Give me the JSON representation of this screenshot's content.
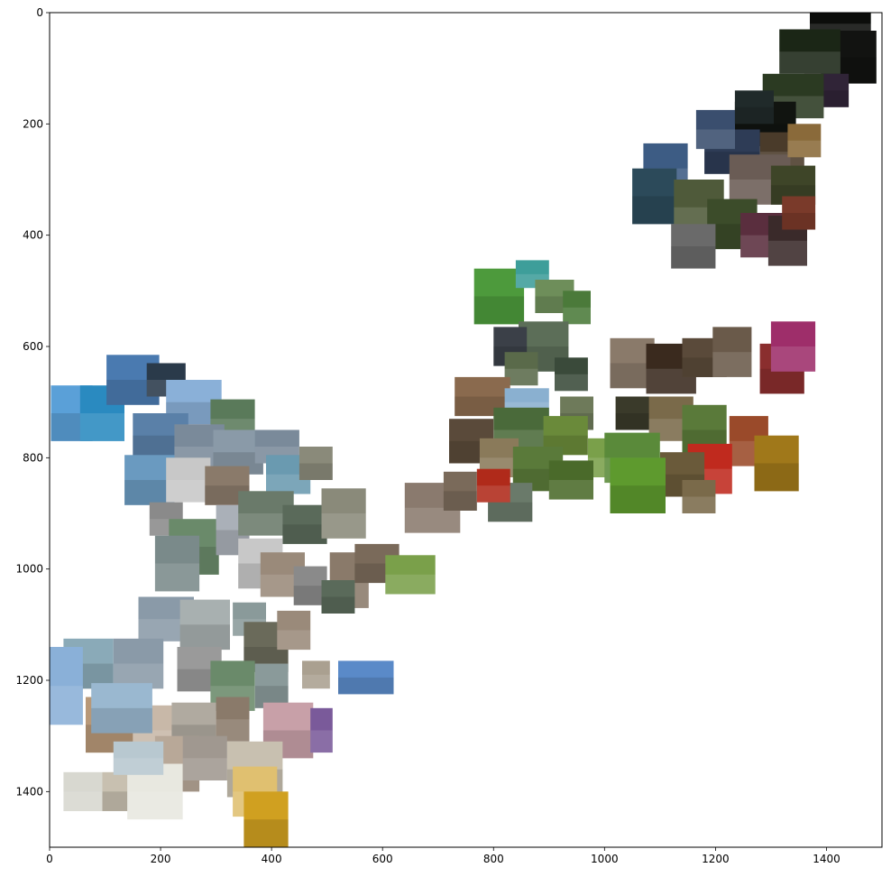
{
  "chart_data": {
    "type": "scatter",
    "title": "",
    "xlabel": "",
    "ylabel": "",
    "xlim": [
      0,
      1500
    ],
    "ylim": [
      1500,
      0
    ],
    "y_inverted": true,
    "grid": false,
    "legend": "none",
    "x_ticks": [
      0,
      200,
      400,
      600,
      800,
      1000,
      1200,
      1400
    ],
    "y_ticks": [
      0,
      200,
      400,
      600,
      800,
      1000,
      1200,
      1400
    ],
    "description_marks": "image thumbnails placed at embedding coordinates",
    "points": [
      {
        "x": 1425,
        "y": 20,
        "w": 110,
        "h": 60,
        "color": "#0c0d0b"
      },
      {
        "x": 1440,
        "y": 80,
        "w": 100,
        "h": 95,
        "color": "#121311"
      },
      {
        "x": 1370,
        "y": 70,
        "w": 110,
        "h": 80,
        "color": "#1b2616"
      },
      {
        "x": 1400,
        "y": 140,
        "w": 80,
        "h": 60,
        "color": "#302437"
      },
      {
        "x": 1340,
        "y": 150,
        "w": 110,
        "h": 80,
        "color": "#2b3a22"
      },
      {
        "x": 1290,
        "y": 200,
        "w": 110,
        "h": 80,
        "color": "#111410"
      },
      {
        "x": 1320,
        "y": 250,
        "w": 80,
        "h": 70,
        "color": "#4a3b2a"
      },
      {
        "x": 1230,
        "y": 250,
        "w": 100,
        "h": 80,
        "color": "#2e3c56"
      },
      {
        "x": 1280,
        "y": 300,
        "w": 110,
        "h": 90,
        "color": "#6a5c55"
      },
      {
        "x": 1340,
        "y": 310,
        "w": 80,
        "h": 70,
        "color": "#3e4528"
      },
      {
        "x": 1110,
        "y": 280,
        "w": 80,
        "h": 90,
        "color": "#3d5c84"
      },
      {
        "x": 1090,
        "y": 330,
        "w": 80,
        "h": 100,
        "color": "#2c4a5a"
      },
      {
        "x": 1170,
        "y": 350,
        "w": 90,
        "h": 100,
        "color": "#4f5a3a"
      },
      {
        "x": 1230,
        "y": 380,
        "w": 90,
        "h": 90,
        "color": "#3c4c2a"
      },
      {
        "x": 1290,
        "y": 400,
        "w": 90,
        "h": 80,
        "color": "#5a2e3e"
      },
      {
        "x": 1160,
        "y": 420,
        "w": 80,
        "h": 80,
        "color": "#6a6a6a"
      },
      {
        "x": 1330,
        "y": 410,
        "w": 70,
        "h": 90,
        "color": "#3a2a2a"
      },
      {
        "x": 1350,
        "y": 360,
        "w": 60,
        "h": 60,
        "color": "#7a3a2a"
      },
      {
        "x": 1200,
        "y": 210,
        "w": 70,
        "h": 70,
        "color": "#3a4e6e"
      },
      {
        "x": 1270,
        "y": 170,
        "w": 70,
        "h": 60,
        "color": "#202a2a"
      },
      {
        "x": 1360,
        "y": 230,
        "w": 60,
        "h": 60,
        "color": "#8a6a3a"
      },
      {
        "x": 810,
        "y": 510,
        "w": 90,
        "h": 100,
        "color": "#4d9a3c"
      },
      {
        "x": 870,
        "y": 470,
        "w": 60,
        "h": 50,
        "color": "#3e9e9a"
      },
      {
        "x": 910,
        "y": 510,
        "w": 70,
        "h": 60,
        "color": "#6e8e5a"
      },
      {
        "x": 950,
        "y": 530,
        "w": 50,
        "h": 60,
        "color": "#4b7a3a"
      },
      {
        "x": 890,
        "y": 600,
        "w": 90,
        "h": 90,
        "color": "#5c6e58"
      },
      {
        "x": 940,
        "y": 650,
        "w": 60,
        "h": 60,
        "color": "#3a4a3a"
      },
      {
        "x": 830,
        "y": 600,
        "w": 60,
        "h": 70,
        "color": "#3b4048"
      },
      {
        "x": 850,
        "y": 640,
        "w": 60,
        "h": 60,
        "color": "#5a6a4a"
      },
      {
        "x": 780,
        "y": 690,
        "w": 100,
        "h": 70,
        "color": "#8a6a4e"
      },
      {
        "x": 860,
        "y": 700,
        "w": 80,
        "h": 50,
        "color": "#8ab0d0"
      },
      {
        "x": 950,
        "y": 720,
        "w": 60,
        "h": 60,
        "color": "#6e7a5a"
      },
      {
        "x": 850,
        "y": 750,
        "w": 100,
        "h": 80,
        "color": "#4a6a3a"
      },
      {
        "x": 930,
        "y": 760,
        "w": 80,
        "h": 70,
        "color": "#6a8a3a"
      },
      {
        "x": 1000,
        "y": 800,
        "w": 60,
        "h": 70,
        "color": "#7aa04a"
      },
      {
        "x": 760,
        "y": 770,
        "w": 80,
        "h": 80,
        "color": "#5a4a3a"
      },
      {
        "x": 810,
        "y": 800,
        "w": 70,
        "h": 70,
        "color": "#8a7a5a"
      },
      {
        "x": 880,
        "y": 820,
        "w": 90,
        "h": 80,
        "color": "#5a7a3a"
      },
      {
        "x": 940,
        "y": 840,
        "w": 80,
        "h": 70,
        "color": "#4a6a2a"
      },
      {
        "x": 830,
        "y": 880,
        "w": 80,
        "h": 70,
        "color": "#6a7a6a"
      },
      {
        "x": 690,
        "y": 890,
        "w": 100,
        "h": 90,
        "color": "#8a7a6e"
      },
      {
        "x": 740,
        "y": 860,
        "w": 60,
        "h": 70,
        "color": "#7a6a5a"
      },
      {
        "x": 800,
        "y": 850,
        "w": 60,
        "h": 60,
        "color": "#b02a1a"
      },
      {
        "x": 1050,
        "y": 630,
        "w": 80,
        "h": 90,
        "color": "#8a7a6a"
      },
      {
        "x": 1120,
        "y": 640,
        "w": 90,
        "h": 90,
        "color": "#3a2a1e"
      },
      {
        "x": 1180,
        "y": 620,
        "w": 80,
        "h": 70,
        "color": "#5a4a3a"
      },
      {
        "x": 1230,
        "y": 610,
        "w": 70,
        "h": 90,
        "color": "#6a5a4a"
      },
      {
        "x": 1320,
        "y": 640,
        "w": 80,
        "h": 90,
        "color": "#8a2e2e"
      },
      {
        "x": 1340,
        "y": 600,
        "w": 80,
        "h": 90,
        "color": "#9e2e6a"
      },
      {
        "x": 1060,
        "y": 720,
        "w": 80,
        "h": 60,
        "color": "#3a3a2a"
      },
      {
        "x": 1120,
        "y": 730,
        "w": 80,
        "h": 80,
        "color": "#7a6a4a"
      },
      {
        "x": 1180,
        "y": 750,
        "w": 80,
        "h": 90,
        "color": "#5a7a3a"
      },
      {
        "x": 1260,
        "y": 770,
        "w": 70,
        "h": 90,
        "color": "#9a4a2a"
      },
      {
        "x": 1310,
        "y": 810,
        "w": 80,
        "h": 100,
        "color": "#a0781a"
      },
      {
        "x": 1190,
        "y": 820,
        "w": 80,
        "h": 90,
        "color": "#c02a1e"
      },
      {
        "x": 1140,
        "y": 830,
        "w": 80,
        "h": 80,
        "color": "#6a5a3a"
      },
      {
        "x": 1050,
        "y": 800,
        "w": 100,
        "h": 90,
        "color": "#5a8a3a"
      },
      {
        "x": 1060,
        "y": 850,
        "w": 100,
        "h": 100,
        "color": "#5e9a2e"
      },
      {
        "x": 1170,
        "y": 870,
        "w": 60,
        "h": 60,
        "color": "#7a6a4a"
      },
      {
        "x": 40,
        "y": 720,
        "w": 75,
        "h": 100,
        "color": "#5aa0d8"
      },
      {
        "x": 95,
        "y": 720,
        "w": 80,
        "h": 100,
        "color": "#2a8ac0"
      },
      {
        "x": 150,
        "y": 660,
        "w": 95,
        "h": 90,
        "color": "#4a7ab0"
      },
      {
        "x": 210,
        "y": 660,
        "w": 70,
        "h": 60,
        "color": "#2a3a4a"
      },
      {
        "x": 260,
        "y": 700,
        "w": 100,
        "h": 80,
        "color": "#8ab0d8"
      },
      {
        "x": 330,
        "y": 730,
        "w": 80,
        "h": 70,
        "color": "#5a7a5a"
      },
      {
        "x": 200,
        "y": 760,
        "w": 100,
        "h": 80,
        "color": "#5a80a8"
      },
      {
        "x": 270,
        "y": 780,
        "w": 90,
        "h": 80,
        "color": "#7a8a9a"
      },
      {
        "x": 340,
        "y": 790,
        "w": 90,
        "h": 80,
        "color": "#8a9aa8"
      },
      {
        "x": 410,
        "y": 780,
        "w": 80,
        "h": 60,
        "color": "#7a8a9a"
      },
      {
        "x": 180,
        "y": 840,
        "w": 90,
        "h": 90,
        "color": "#6a9ac0"
      },
      {
        "x": 250,
        "y": 840,
        "w": 80,
        "h": 80,
        "color": "#c8c8c8"
      },
      {
        "x": 320,
        "y": 850,
        "w": 80,
        "h": 70,
        "color": "#8a7a6a"
      },
      {
        "x": 430,
        "y": 830,
        "w": 80,
        "h": 70,
        "color": "#6a9ab0"
      },
      {
        "x": 480,
        "y": 810,
        "w": 60,
        "h": 60,
        "color": "#8a8a7a"
      },
      {
        "x": 210,
        "y": 910,
        "w": 60,
        "h": 60,
        "color": "#8a8a8a"
      },
      {
        "x": 260,
        "y": 960,
        "w": 90,
        "h": 100,
        "color": "#6a8a6a"
      },
      {
        "x": 230,
        "y": 990,
        "w": 80,
        "h": 100,
        "color": "#7a8a8a"
      },
      {
        "x": 330,
        "y": 930,
        "w": 60,
        "h": 90,
        "color": "#aab0b8"
      },
      {
        "x": 390,
        "y": 900,
        "w": 100,
        "h": 80,
        "color": "#6a7a6a"
      },
      {
        "x": 460,
        "y": 920,
        "w": 80,
        "h": 70,
        "color": "#5a6a5a"
      },
      {
        "x": 530,
        "y": 900,
        "w": 80,
        "h": 90,
        "color": "#8a8a7a"
      },
      {
        "x": 380,
        "y": 990,
        "w": 80,
        "h": 90,
        "color": "#c8c8c8"
      },
      {
        "x": 420,
        "y": 1010,
        "w": 80,
        "h": 80,
        "color": "#9a8a7a"
      },
      {
        "x": 470,
        "y": 1030,
        "w": 60,
        "h": 70,
        "color": "#8a8a8a"
      },
      {
        "x": 540,
        "y": 1020,
        "w": 70,
        "h": 100,
        "color": "#8a7a6a"
      },
      {
        "x": 590,
        "y": 990,
        "w": 80,
        "h": 70,
        "color": "#7a6a5a"
      },
      {
        "x": 650,
        "y": 1010,
        "w": 90,
        "h": 70,
        "color": "#7aa04a"
      },
      {
        "x": 520,
        "y": 1050,
        "w": 60,
        "h": 60,
        "color": "#5a6a5a"
      },
      {
        "x": 210,
        "y": 1090,
        "w": 100,
        "h": 80,
        "color": "#8a9aa8"
      },
      {
        "x": 280,
        "y": 1100,
        "w": 90,
        "h": 90,
        "color": "#a8b0b0"
      },
      {
        "x": 360,
        "y": 1090,
        "w": 60,
        "h": 60,
        "color": "#8a9a9a"
      },
      {
        "x": 390,
        "y": 1140,
        "w": 80,
        "h": 90,
        "color": "#6a6a5a"
      },
      {
        "x": 440,
        "y": 1110,
        "w": 60,
        "h": 70,
        "color": "#9a8a7a"
      },
      {
        "x": 70,
        "y": 1170,
        "w": 90,
        "h": 90,
        "color": "#8aaab8"
      },
      {
        "x": 160,
        "y": 1170,
        "w": 90,
        "h": 90,
        "color": "#8a9aa8"
      },
      {
        "x": 270,
        "y": 1180,
        "w": 80,
        "h": 80,
        "color": "#9a9a9a"
      },
      {
        "x": 330,
        "y": 1210,
        "w": 80,
        "h": 90,
        "color": "#6a8a6a"
      },
      {
        "x": 400,
        "y": 1210,
        "w": 60,
        "h": 80,
        "color": "#8a9a9a"
      },
      {
        "x": 480,
        "y": 1190,
        "w": 50,
        "h": 50,
        "color": "#aaa090"
      },
      {
        "x": 570,
        "y": 1195,
        "w": 100,
        "h": 60,
        "color": "#5a8ac8"
      },
      {
        "x": 30,
        "y": 1210,
        "w": 60,
        "h": 140,
        "color": "#8ab0d8"
      },
      {
        "x": 110,
        "y": 1280,
        "w": 90,
        "h": 100,
        "color": "#b89878"
      },
      {
        "x": 190,
        "y": 1290,
        "w": 80,
        "h": 90,
        "color": "#c8b8a8"
      },
      {
        "x": 260,
        "y": 1280,
        "w": 80,
        "h": 80,
        "color": "#b0aaa0"
      },
      {
        "x": 330,
        "y": 1270,
        "w": 60,
        "h": 80,
        "color": "#8a7a6a"
      },
      {
        "x": 430,
        "y": 1290,
        "w": 90,
        "h": 100,
        "color": "#c8a0a8"
      },
      {
        "x": 490,
        "y": 1290,
        "w": 40,
        "h": 80,
        "color": "#7a5a9a"
      },
      {
        "x": 230,
        "y": 1350,
        "w": 80,
        "h": 100,
        "color": "#b8a898"
      },
      {
        "x": 280,
        "y": 1340,
        "w": 80,
        "h": 80,
        "color": "#a09890"
      },
      {
        "x": 370,
        "y": 1360,
        "w": 100,
        "h": 100,
        "color": "#c8c0b0"
      },
      {
        "x": 370,
        "y": 1400,
        "w": 80,
        "h": 90,
        "color": "#e0c070"
      },
      {
        "x": 390,
        "y": 1450,
        "w": 80,
        "h": 100,
        "color": "#d0a020"
      },
      {
        "x": 60,
        "y": 1400,
        "w": 70,
        "h": 70,
        "color": "#d8d8d0"
      },
      {
        "x": 140,
        "y": 1400,
        "w": 90,
        "h": 70,
        "color": "#c8c0b0"
      },
      {
        "x": 190,
        "y": 1400,
        "w": 100,
        "h": 100,
        "color": "#e8e8e0"
      },
      {
        "x": 130,
        "y": 1250,
        "w": 110,
        "h": 90,
        "color": "#9ab8d0"
      },
      {
        "x": 160,
        "y": 1340,
        "w": 90,
        "h": 60,
        "color": "#b8c8d0"
      }
    ]
  }
}
